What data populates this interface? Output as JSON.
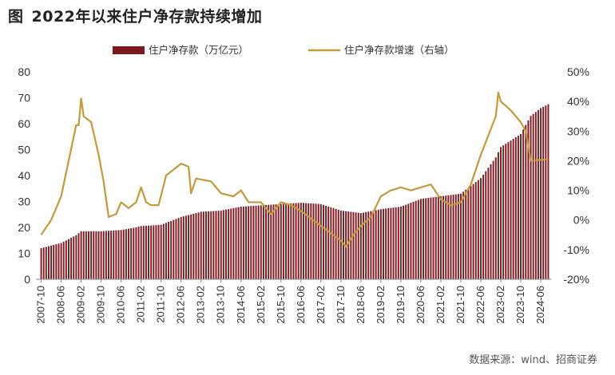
{
  "title_prefix": "图",
  "title_text": "2022年以来住户净存款持续增加",
  "source": "数据来源：wind、招商证券",
  "chart_data": {
    "type": "bar+line",
    "title": "2022年以来住户净存款持续增加",
    "legend": [
      "住户净存款（万亿元）",
      "住户净存款增速（右轴）"
    ],
    "legend_position": "top",
    "grid": false,
    "y_left": {
      "range": [
        0,
        80
      ],
      "ticks": [
        "0",
        "10",
        "20",
        "30",
        "40",
        "50",
        "60",
        "70",
        "80"
      ]
    },
    "y_right": {
      "range": [
        -20,
        50
      ],
      "ticks": [
        "-20%",
        "-10%",
        "0%",
        "10%",
        "20%",
        "30%",
        "40%",
        "50%"
      ]
    },
    "x_tick_labels": [
      "2007-10",
      "2008-06",
      "2009-02",
      "2009-10",
      "2010-06",
      "2011-02",
      "2011-10",
      "2012-06",
      "2013-02",
      "2013-10",
      "2014-06",
      "2015-02",
      "2015-10",
      "2016-06",
      "2017-02",
      "2017-10",
      "2018-06",
      "2019-02",
      "2019-10",
      "2020-06",
      "2021-02",
      "2021-10",
      "2022-06",
      "2023-02",
      "2023-10",
      "2024-06"
    ],
    "start_month": "2007-10",
    "deposit_keypoints": [
      [
        "2007-10",
        12
      ],
      [
        "2008-06",
        14
      ],
      [
        "2008-12",
        17
      ],
      [
        "2009-02",
        18.5
      ],
      [
        "2009-10",
        18.5
      ],
      [
        "2010-06",
        19
      ],
      [
        "2010-12",
        20
      ],
      [
        "2011-02",
        20.5
      ],
      [
        "2011-10",
        21
      ],
      [
        "2012-02",
        22.5
      ],
      [
        "2012-06",
        24
      ],
      [
        "2013-02",
        26
      ],
      [
        "2013-10",
        26.5
      ],
      [
        "2014-06",
        28
      ],
      [
        "2015-02",
        28.5
      ],
      [
        "2015-10",
        29
      ],
      [
        "2016-06",
        29.5
      ],
      [
        "2017-02",
        29
      ],
      [
        "2017-10",
        26.5
      ],
      [
        "2018-06",
        25.5
      ],
      [
        "2019-02",
        27
      ],
      [
        "2019-10",
        28
      ],
      [
        "2020-06",
        31
      ],
      [
        "2021-02",
        32
      ],
      [
        "2021-10",
        33
      ],
      [
        "2022-06",
        39
      ],
      [
        "2022-12",
        47
      ],
      [
        "2023-02",
        51
      ],
      [
        "2023-10",
        56
      ],
      [
        "2024-02",
        63
      ],
      [
        "2024-06",
        66
      ],
      [
        "2024-09",
        67.5
      ]
    ],
    "growth_keypoints": [
      [
        "2007-10",
        -5
      ],
      [
        "2008-02",
        0
      ],
      [
        "2008-06",
        8
      ],
      [
        "2008-12",
        32
      ],
      [
        "2009-01",
        32
      ],
      [
        "2009-02",
        41
      ],
      [
        "2009-03",
        35
      ],
      [
        "2009-06",
        33
      ],
      [
        "2009-09",
        22
      ],
      [
        "2009-11",
        13
      ],
      [
        "2010-01",
        1
      ],
      [
        "2010-04",
        2
      ],
      [
        "2010-06",
        6
      ],
      [
        "2010-09",
        4
      ],
      [
        "2010-12",
        6
      ],
      [
        "2011-02",
        11
      ],
      [
        "2011-04",
        6
      ],
      [
        "2011-06",
        5
      ],
      [
        "2011-09",
        5
      ],
      [
        "2011-12",
        15
      ],
      [
        "2012-03",
        17
      ],
      [
        "2012-06",
        19
      ],
      [
        "2012-09",
        18
      ],
      [
        "2012-10",
        9
      ],
      [
        "2012-12",
        14
      ],
      [
        "2013-06",
        13
      ],
      [
        "2013-10",
        9
      ],
      [
        "2014-03",
        8
      ],
      [
        "2014-06",
        10
      ],
      [
        "2014-09",
        6
      ],
      [
        "2015-02",
        6
      ],
      [
        "2015-06",
        2
      ],
      [
        "2015-10",
        6
      ],
      [
        "2016-02",
        5
      ],
      [
        "2016-06",
        3
      ],
      [
        "2017-02",
        -2
      ],
      [
        "2017-10",
        -7
      ],
      [
        "2017-12",
        -9
      ],
      [
        "2018-03",
        -5
      ],
      [
        "2018-06",
        -2
      ],
      [
        "2018-10",
        1
      ],
      [
        "2019-02",
        8
      ],
      [
        "2019-06",
        10
      ],
      [
        "2019-10",
        11
      ],
      [
        "2020-02",
        10
      ],
      [
        "2020-06",
        11
      ],
      [
        "2020-10",
        12
      ],
      [
        "2021-02",
        7
      ],
      [
        "2021-06",
        5
      ],
      [
        "2021-10",
        6
      ],
      [
        "2022-02",
        12
      ],
      [
        "2022-06",
        22
      ],
      [
        "2022-12",
        35
      ],
      [
        "2023-01",
        43
      ],
      [
        "2023-02",
        40
      ],
      [
        "2023-06",
        37
      ],
      [
        "2023-10",
        33
      ],
      [
        "2023-12",
        30
      ],
      [
        "2024-02",
        20
      ],
      [
        "2024-09",
        20.5
      ]
    ]
  }
}
